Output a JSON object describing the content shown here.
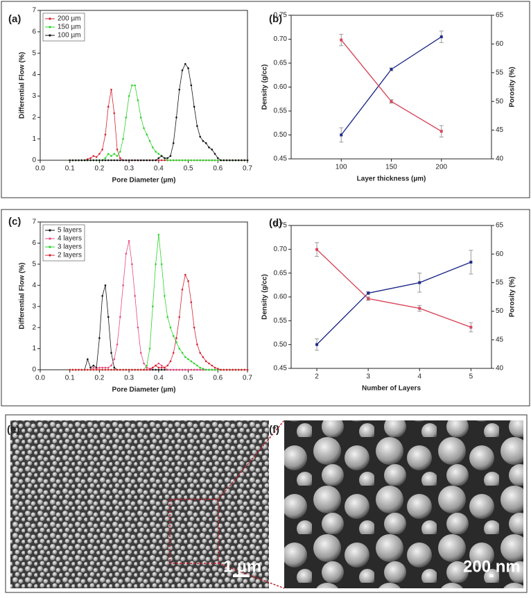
{
  "chart_data": [
    {
      "type": "line",
      "label": "(a)",
      "xlabel": "Pore Diameter (µm)",
      "ylabel": "Differential Flow (%)",
      "x": [
        0.1,
        0.11,
        0.12,
        0.13,
        0.14,
        0.15,
        0.16,
        0.17,
        0.18,
        0.19,
        0.2,
        0.21,
        0.22,
        0.23,
        0.24,
        0.25,
        0.26,
        0.27,
        0.28,
        0.29,
        0.3,
        0.31,
        0.32,
        0.33,
        0.34,
        0.35,
        0.36,
        0.37,
        0.38,
        0.39,
        0.4,
        0.41,
        0.42,
        0.43,
        0.44,
        0.45,
        0.46,
        0.47,
        0.48,
        0.49,
        0.5,
        0.51,
        0.52,
        0.53,
        0.54,
        0.55,
        0.56,
        0.57,
        0.58,
        0.59,
        0.6,
        0.61,
        0.62,
        0.63,
        0.64,
        0.65,
        0.66,
        0.67,
        0.68,
        0.69,
        0.7
      ],
      "series": [
        {
          "name": "200 µm",
          "color": "#d62031",
          "values": [
            0,
            0,
            0,
            0,
            0,
            0,
            0.05,
            0.1,
            0.2,
            0.15,
            0.3,
            0.5,
            1.2,
            2.5,
            3.3,
            2.2,
            0.5,
            0.1,
            0,
            0,
            0,
            0,
            0,
            0,
            0,
            0,
            0,
            0,
            0,
            0,
            0,
            0,
            0,
            0,
            0,
            0,
            0,
            0,
            0,
            0,
            0,
            0,
            0,
            0,
            0,
            0,
            0,
            0,
            0,
            0,
            0,
            0,
            0,
            0,
            0,
            0,
            0,
            0,
            0,
            0,
            0
          ]
        },
        {
          "name": "150 µm",
          "color": "#2bd42b",
          "values": [
            0,
            0,
            0,
            0,
            0,
            0,
            0,
            0,
            0,
            0,
            0,
            0,
            0.1,
            0.3,
            0.2,
            0.3,
            0.2,
            0.4,
            1.0,
            2.0,
            3.0,
            3.5,
            3.5,
            2.8,
            2.0,
            1.5,
            1.2,
            0.9,
            0.6,
            0.4,
            0.3,
            0.2,
            0.1,
            0,
            0,
            0,
            0,
            0,
            0,
            0,
            0,
            0,
            0,
            0,
            0,
            0,
            0,
            0,
            0,
            0,
            0,
            0,
            0,
            0,
            0,
            0,
            0,
            0,
            0,
            0,
            0
          ]
        },
        {
          "name": "100 µm",
          "color": "#111111",
          "values": [
            0,
            0,
            0,
            0,
            0,
            0,
            0,
            0,
            0,
            0,
            0,
            0,
            0,
            0,
            0,
            0,
            0,
            0,
            0,
            0,
            0,
            0,
            0,
            0,
            0,
            0,
            0,
            0,
            0,
            0,
            0.1,
            0.2,
            0.1,
            0.1,
            0.2,
            0.8,
            2.0,
            3.3,
            4.2,
            4.5,
            4.3,
            3.5,
            2.5,
            1.6,
            1.1,
            0.9,
            0.8,
            0.6,
            0.5,
            0.3,
            0.1,
            0,
            0,
            0,
            0,
            0,
            0,
            0,
            0,
            0,
            0
          ]
        }
      ],
      "xlim": [
        0,
        0.7
      ],
      "xticks": [
        {
          "value": 0,
          "label": "0.0"
        },
        0.1,
        0.2,
        0.3,
        0.4,
        0.5,
        0.6,
        0.7
      ],
      "ylim": [
        0,
        7
      ],
      "yticks": [
        0,
        1,
        2,
        3,
        4,
        5,
        6,
        7
      ],
      "legend": "upper left"
    },
    {
      "type": "line",
      "label": "(b)",
      "xlabel": "Layer thickness (µm)",
      "ylabel": "Density (g/cc)",
      "y2label": "Porosity (%)",
      "x": [
        100,
        150,
        200
      ],
      "series": [
        {
          "name": "Density",
          "color": "#1f2a8a",
          "values": [
            0.5,
            0.637,
            0.705
          ],
          "errors": [
            0.015,
            0.003,
            0.012
          ]
        },
        {
          "name": "Porosity",
          "color": "#d9475c",
          "axis": "y2",
          "values": [
            60.7,
            50,
            44.8
          ],
          "errors": [
            1,
            0.3,
            1
          ]
        }
      ],
      "xlim": [
        50,
        250
      ],
      "xticks": [
        100,
        150,
        200
      ],
      "ylim": [
        0.45,
        0.75
      ],
      "yticks": [
        0.45,
        {
          "value": 0.5,
          "label": "0.50"
        },
        0.55,
        {
          "value": 0.6,
          "label": "0.60"
        },
        0.65,
        {
          "value": 0.7,
          "label": "0.70"
        },
        0.75
      ],
      "y2lim": [
        40,
        65
      ],
      "y2ticks": [
        40,
        45,
        50,
        55,
        60,
        65
      ]
    },
    {
      "type": "line",
      "label": "(c)",
      "xlabel": "Pore Diameter (µm)",
      "ylabel": "Differential Flow (%)",
      "x": [
        0.1,
        0.11,
        0.12,
        0.13,
        0.14,
        0.15,
        0.16,
        0.17,
        0.18,
        0.19,
        0.2,
        0.21,
        0.22,
        0.23,
        0.24,
        0.25,
        0.26,
        0.27,
        0.28,
        0.29,
        0.3,
        0.31,
        0.32,
        0.33,
        0.34,
        0.35,
        0.36,
        0.37,
        0.38,
        0.39,
        0.4,
        0.41,
        0.42,
        0.43,
        0.44,
        0.45,
        0.46,
        0.47,
        0.48,
        0.49,
        0.5,
        0.51,
        0.52,
        0.53,
        0.54,
        0.55,
        0.56,
        0.57,
        0.58,
        0.59,
        0.6,
        0.61,
        0.62,
        0.63,
        0.64,
        0.65,
        0.66,
        0.67,
        0.68,
        0.69,
        0.7
      ],
      "series": [
        {
          "name": "5 layers",
          "color": "#111111",
          "values": [
            0,
            0,
            0,
            0,
            0,
            0,
            0.5,
            0.1,
            0.2,
            0.1,
            1.5,
            3.5,
            4.0,
            2.5,
            0.8,
            0.1,
            0,
            0,
            0,
            0,
            0,
            0,
            0,
            0,
            0,
            0,
            0,
            0,
            0,
            0,
            0,
            0,
            0,
            0,
            0,
            0,
            0,
            0,
            0,
            0,
            0,
            0,
            0,
            0,
            0,
            0,
            0,
            0,
            0,
            0,
            0,
            0,
            0,
            0,
            0,
            0,
            0,
            0,
            0,
            0,
            0
          ]
        },
        {
          "name": "4 layers",
          "color": "#e8477f",
          "values": [
            0,
            0,
            0,
            0,
            0,
            0,
            0,
            0,
            0.1,
            0.05,
            0.1,
            0.1,
            0.1,
            0.1,
            0.2,
            0.5,
            1.2,
            2.5,
            4.0,
            5.5,
            6.1,
            5.0,
            3.5,
            2.0,
            0.8,
            0.3,
            0.1,
            0.05,
            0.1,
            0.2,
            0.3,
            0.2,
            0.1,
            0,
            0,
            0,
            0,
            0,
            0,
            0,
            0,
            0,
            0,
            0,
            0,
            0,
            0,
            0,
            0,
            0,
            0,
            0,
            0,
            0,
            0,
            0,
            0,
            0,
            0,
            0,
            0
          ]
        },
        {
          "name": "3 layers",
          "color": "#2bd42b",
          "values": [
            0,
            0,
            0,
            0,
            0,
            0,
            0,
            0,
            0,
            0,
            0,
            0,
            0,
            0,
            0,
            0,
            0,
            0,
            0,
            0,
            0,
            0,
            0,
            0,
            0,
            0,
            0.2,
            1.0,
            3.0,
            5.0,
            6.4,
            5.0,
            3.5,
            2.5,
            2.0,
            1.6,
            1.3,
            1.0,
            0.8,
            0.6,
            0.5,
            0.4,
            0.3,
            0.2,
            0.1,
            0.05,
            0,
            0,
            0,
            0,
            0,
            0,
            0,
            0,
            0,
            0,
            0,
            0,
            0,
            0,
            0
          ]
        },
        {
          "name": "2 layers",
          "color": "#d62031",
          "values": [
            0,
            0,
            0,
            0,
            0,
            0,
            0,
            0,
            0,
            0,
            0,
            0,
            0,
            0,
            0,
            0,
            0,
            0,
            0,
            0,
            0,
            0,
            0,
            0,
            0,
            0,
            0,
            0,
            0.1,
            0.2,
            0.1,
            0.1,
            0.1,
            0.2,
            0.4,
            0.8,
            1.5,
            2.5,
            3.8,
            4.5,
            4.2,
            3.2,
            2.0,
            1.2,
            0.8,
            0.6,
            0.4,
            0.3,
            0.2,
            0.1,
            0.05,
            0,
            0,
            0,
            0,
            0,
            0,
            0,
            0,
            0,
            0
          ]
        }
      ],
      "xlim": [
        0,
        0.7
      ],
      "xticks": [
        {
          "value": 0,
          "label": "0.0"
        },
        0.1,
        0.2,
        0.3,
        0.4,
        0.5,
        0.6,
        0.7
      ],
      "ylim": [
        0,
        7
      ],
      "yticks": [
        0,
        1,
        2,
        3,
        4,
        5,
        6,
        7
      ],
      "legend": "upper left"
    },
    {
      "type": "line",
      "label": "(d)",
      "xlabel": "Number of Layers",
      "ylabel": "Density (g/cc)",
      "y2label": "Porosity (%)",
      "x": [
        2,
        3,
        4,
        5
      ],
      "series": [
        {
          "name": "Density",
          "color": "#1f2a8a",
          "values": [
            0.5,
            0.608,
            0.63,
            0.673
          ],
          "errors": [
            0.012,
            0.003,
            0.02,
            0.025
          ]
        },
        {
          "name": "Porosity",
          "color": "#d9475c",
          "axis": "y2",
          "values": [
            60.8,
            52.2,
            50.5,
            47.2
          ],
          "errors": [
            1.2,
            0.3,
            0.5,
            0.8
          ]
        }
      ],
      "xlim": [
        1.5,
        5.4
      ],
      "xticks": [
        2,
        3,
        4,
        5
      ],
      "ylim": [
        0.45,
        0.75
      ],
      "yticks": [
        0.45,
        {
          "value": 0.5,
          "label": "0.50"
        },
        0.55,
        {
          "value": 0.6,
          "label": "0.60"
        },
        0.65,
        {
          "value": 0.7,
          "label": "0.70"
        },
        0.75
      ],
      "y2lim": [
        40,
        65
      ],
      "y2ticks": [
        40,
        45,
        50,
        55,
        60,
        65
      ]
    }
  ],
  "images": [
    {
      "label": "(e)",
      "scale_bar": "1 µm"
    },
    {
      "label": "(f)",
      "scale_bar": "200 nm"
    }
  ]
}
